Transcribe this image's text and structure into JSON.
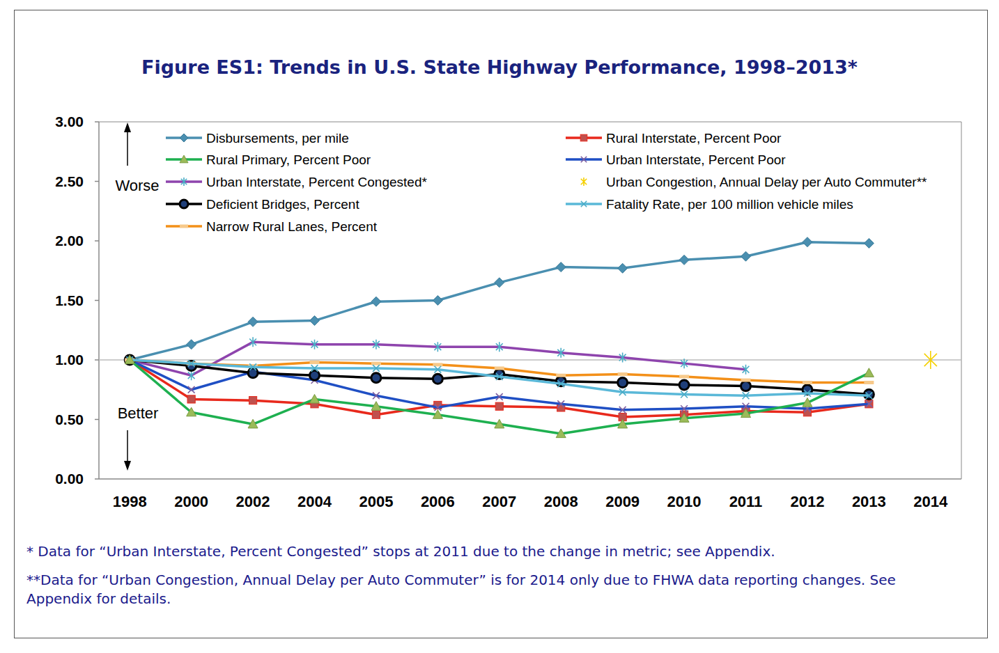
{
  "chart_data": {
    "type": "line",
    "title": "Figure ES1: Trends in U.S. State Highway Performance, 1998–2013*",
    "categories": [
      "1998",
      "2000",
      "2002",
      "2004",
      "2005",
      "2006",
      "2007",
      "2008",
      "2009",
      "2010",
      "2011",
      "2012",
      "2013",
      "2014"
    ],
    "ylim": [
      0,
      3
    ],
    "yticks": [
      {
        "value": 0,
        "label": "0.00"
      },
      {
        "value": 0.5,
        "label": "0.50"
      },
      {
        "value": 1,
        "label": "1.00"
      },
      {
        "value": 1.5,
        "label": "1.50"
      },
      {
        "value": 2,
        "label": "2.00"
      },
      {
        "value": 2.5,
        "label": "2.50"
      },
      {
        "value": 3,
        "label": "3.00"
      }
    ],
    "reference_line": 1,
    "grid": false,
    "legend": "top",
    "annotations": [
      "Worse",
      "Better"
    ],
    "footnotes": [
      "* Data for “Urban Interstate, Percent Congested” stops at 2011 due to the change in metric; see Appendix.",
      "**Data for “Urban Congestion, Annual Delay per Auto Commuter” is for 2014 only due to FHWA data reporting changes. See Appendix for details."
    ],
    "series": [
      {
        "name": "Disbursements, per mile",
        "color": "#4a8fb0",
        "marker": "diamond",
        "values": [
          1.0,
          1.13,
          1.32,
          1.33,
          1.49,
          1.5,
          1.65,
          1.78,
          1.77,
          1.84,
          1.87,
          1.99,
          1.98,
          null
        ]
      },
      {
        "name": "Rural Interstate, Percent Poor",
        "color": "#e8291c",
        "marker": "square",
        "values": [
          1.0,
          0.67,
          0.66,
          0.63,
          0.54,
          0.62,
          0.61,
          0.6,
          0.52,
          0.54,
          0.57,
          0.56,
          0.63,
          null
        ]
      },
      {
        "name": "Rural Primary, Percent Poor",
        "color": "#1eb050",
        "marker": "triangle",
        "values": [
          1.0,
          0.56,
          0.46,
          0.67,
          0.61,
          0.54,
          0.46,
          0.38,
          0.46,
          0.51,
          0.55,
          0.64,
          0.89,
          null
        ]
      },
      {
        "name": "Urban Interstate, Percent Poor",
        "color": "#1f4fc4",
        "marker": "x",
        "values": [
          1.0,
          0.75,
          0.9,
          0.83,
          0.7,
          0.6,
          0.69,
          0.63,
          0.58,
          0.59,
          0.61,
          0.59,
          0.63,
          null
        ]
      },
      {
        "name": "Urban Interstate, Percent Congested*",
        "color": "#8e44ad",
        "marker": "asterisk",
        "values": [
          1.0,
          0.87,
          1.15,
          1.13,
          1.13,
          1.11,
          1.11,
          1.06,
          1.02,
          0.97,
          0.92,
          null,
          null,
          null
        ]
      },
      {
        "name": "Urban Congestion, Annual Delay per Auto Commuter**",
        "color": "#f5d000",
        "marker": "asterisk",
        "values": [
          null,
          null,
          null,
          null,
          null,
          null,
          null,
          null,
          null,
          null,
          null,
          null,
          null,
          1.0
        ]
      },
      {
        "name": "Deficient Bridges, Percent",
        "color": "#000000",
        "marker": "circle",
        "values": [
          1.0,
          0.95,
          0.89,
          0.87,
          0.85,
          0.84,
          0.88,
          0.82,
          0.81,
          0.79,
          0.78,
          0.75,
          0.71,
          null
        ]
      },
      {
        "name": "Fatality Rate, per 100 million vehicle miles",
        "color": "#5ab8d8",
        "marker": "x",
        "values": [
          1.0,
          0.97,
          0.94,
          0.93,
          0.93,
          0.92,
          0.86,
          0.8,
          0.73,
          0.71,
          0.7,
          0.72,
          0.7,
          null
        ]
      },
      {
        "name": "Narrow Rural Lanes, Percent",
        "color": "#f39019",
        "marker": "dash",
        "values": [
          1.0,
          0.97,
          0.95,
          0.98,
          0.97,
          0.96,
          0.93,
          0.87,
          0.88,
          0.86,
          0.83,
          0.81,
          0.81,
          null
        ]
      }
    ]
  }
}
